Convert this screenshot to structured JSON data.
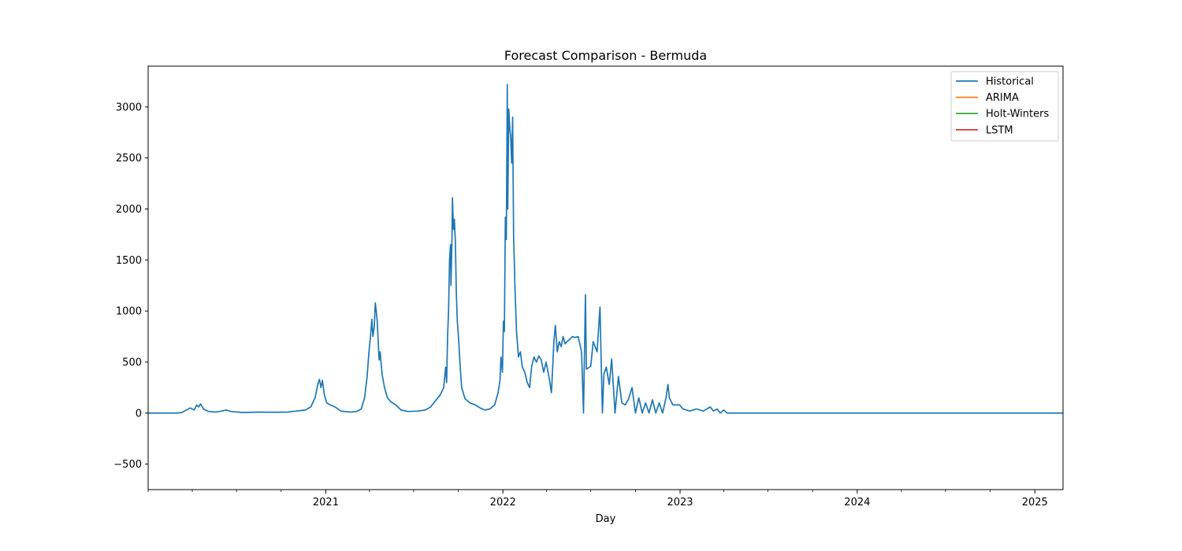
{
  "chart_data": {
    "type": "line",
    "title": "Forecast Comparison - Bermuda",
    "xlabel": "Day",
    "ylabel": "",
    "x_range": [
      "2020-01-01",
      "2025-02-28"
    ],
    "ylim": [
      -750,
      3400
    ],
    "y_ticks": [
      -500,
      0,
      500,
      1000,
      1500,
      2000,
      2500,
      3000
    ],
    "y_tick_labels": [
      "−500",
      "0",
      "500",
      "1000",
      "1500",
      "2000",
      "2500",
      "3000"
    ],
    "x_major_ticks": [
      {
        "date": "2021-01-01",
        "label": "2021"
      },
      {
        "date": "2022-01-01",
        "label": "2022"
      },
      {
        "date": "2023-01-01",
        "label": "2023"
      },
      {
        "date": "2024-01-01",
        "label": "2024"
      },
      {
        "date": "2025-01-01",
        "label": "2025"
      }
    ],
    "grid": false,
    "legend_position": "top-right",
    "series": [
      {
        "name": "Historical",
        "color": "#1f77b4",
        "points": [
          [
            "2020-01-01",
            0
          ],
          [
            "2020-03-01",
            0
          ],
          [
            "2020-03-10",
            5
          ],
          [
            "2020-03-20",
            30
          ],
          [
            "2020-03-28",
            50
          ],
          [
            "2020-04-05",
            30
          ],
          [
            "2020-04-10",
            80
          ],
          [
            "2020-04-14",
            60
          ],
          [
            "2020-04-18",
            90
          ],
          [
            "2020-04-24",
            40
          ],
          [
            "2020-05-05",
            15
          ],
          [
            "2020-05-20",
            10
          ],
          [
            "2020-06-01",
            20
          ],
          [
            "2020-06-10",
            30
          ],
          [
            "2020-06-20",
            15
          ],
          [
            "2020-07-15",
            5
          ],
          [
            "2020-08-15",
            10
          ],
          [
            "2020-09-15",
            8
          ],
          [
            "2020-10-15",
            10
          ],
          [
            "2020-11-01",
            20
          ],
          [
            "2020-11-20",
            30
          ],
          [
            "2020-12-01",
            60
          ],
          [
            "2020-12-10",
            150
          ],
          [
            "2020-12-16",
            290
          ],
          [
            "2020-12-19",
            330
          ],
          [
            "2020-12-22",
            250
          ],
          [
            "2020-12-25",
            320
          ],
          [
            "2020-12-29",
            180
          ],
          [
            "2021-01-03",
            100
          ],
          [
            "2021-01-10",
            80
          ],
          [
            "2021-01-20",
            60
          ],
          [
            "2021-02-01",
            20
          ],
          [
            "2021-02-20",
            10
          ],
          [
            "2021-03-05",
            15
          ],
          [
            "2021-03-15",
            40
          ],
          [
            "2021-03-22",
            150
          ],
          [
            "2021-03-27",
            350
          ],
          [
            "2021-03-31",
            600
          ],
          [
            "2021-04-04",
            800
          ],
          [
            "2021-04-06",
            920
          ],
          [
            "2021-04-08",
            750
          ],
          [
            "2021-04-11",
            850
          ],
          [
            "2021-04-13",
            1080
          ],
          [
            "2021-04-15",
            1000
          ],
          [
            "2021-04-17",
            900
          ],
          [
            "2021-04-19",
            700
          ],
          [
            "2021-04-21",
            520
          ],
          [
            "2021-04-23",
            600
          ],
          [
            "2021-04-27",
            380
          ],
          [
            "2021-05-02",
            250
          ],
          [
            "2021-05-08",
            150
          ],
          [
            "2021-05-15",
            110
          ],
          [
            "2021-05-25",
            80
          ],
          [
            "2021-06-05",
            30
          ],
          [
            "2021-06-20",
            15
          ],
          [
            "2021-07-10",
            20
          ],
          [
            "2021-07-25",
            30
          ],
          [
            "2021-08-05",
            60
          ],
          [
            "2021-08-15",
            120
          ],
          [
            "2021-08-25",
            180
          ],
          [
            "2021-09-01",
            250
          ],
          [
            "2021-09-05",
            450
          ],
          [
            "2021-09-07",
            300
          ],
          [
            "2021-09-09",
            760
          ],
          [
            "2021-09-11",
            1000
          ],
          [
            "2021-09-13",
            1500
          ],
          [
            "2021-09-15",
            1650
          ],
          [
            "2021-09-16",
            1250
          ],
          [
            "2021-09-18",
            1700
          ],
          [
            "2021-09-19",
            2110
          ],
          [
            "2021-09-21",
            1800
          ],
          [
            "2021-09-23",
            1900
          ],
          [
            "2021-09-25",
            1680
          ],
          [
            "2021-09-27",
            1170
          ],
          [
            "2021-09-29",
            900
          ],
          [
            "2021-10-02",
            700
          ],
          [
            "2021-10-05",
            450
          ],
          [
            "2021-10-08",
            250
          ],
          [
            "2021-10-15",
            140
          ],
          [
            "2021-10-25",
            100
          ],
          [
            "2021-11-05",
            80
          ],
          [
            "2021-11-15",
            50
          ],
          [
            "2021-11-25",
            30
          ],
          [
            "2021-12-05",
            40
          ],
          [
            "2021-12-15",
            80
          ],
          [
            "2021-12-22",
            200
          ],
          [
            "2021-12-26",
            320
          ],
          [
            "2021-12-28",
            550
          ],
          [
            "2021-12-31",
            400
          ],
          [
            "2022-01-02",
            900
          ],
          [
            "2022-01-04",
            800
          ],
          [
            "2022-01-06",
            1920
          ],
          [
            "2022-01-08",
            1700
          ],
          [
            "2022-01-10",
            3220
          ],
          [
            "2022-01-11",
            2000
          ],
          [
            "2022-01-13",
            2980
          ],
          [
            "2022-01-15",
            2800
          ],
          [
            "2022-01-17",
            2700
          ],
          [
            "2022-01-19",
            2450
          ],
          [
            "2022-01-21",
            2900
          ],
          [
            "2022-01-23",
            1730
          ],
          [
            "2022-01-26",
            1200
          ],
          [
            "2022-01-29",
            800
          ],
          [
            "2022-02-02",
            550
          ],
          [
            "2022-02-06",
            600
          ],
          [
            "2022-02-10",
            450
          ],
          [
            "2022-02-15",
            400
          ],
          [
            "2022-02-20",
            300
          ],
          [
            "2022-02-25",
            250
          ],
          [
            "2022-03-01",
            450
          ],
          [
            "2022-03-06",
            550
          ],
          [
            "2022-03-11",
            500
          ],
          [
            "2022-03-16",
            560
          ],
          [
            "2022-03-21",
            520
          ],
          [
            "2022-03-26",
            400
          ],
          [
            "2022-03-31",
            500
          ],
          [
            "2022-04-06",
            350
          ],
          [
            "2022-04-11",
            200
          ],
          [
            "2022-04-16",
            700
          ],
          [
            "2022-04-19",
            860
          ],
          [
            "2022-04-23",
            600
          ],
          [
            "2022-04-27",
            700
          ],
          [
            "2022-05-01",
            650
          ],
          [
            "2022-05-05",
            750
          ],
          [
            "2022-05-09",
            680
          ],
          [
            "2022-05-13",
            700
          ],
          [
            "2022-05-18",
            720
          ],
          [
            "2022-05-24",
            750
          ],
          [
            "2022-05-30",
            740
          ],
          [
            "2022-06-05",
            750
          ],
          [
            "2022-06-12",
            600
          ],
          [
            "2022-06-16",
            0
          ],
          [
            "2022-06-20",
            1160
          ],
          [
            "2022-06-22",
            430
          ],
          [
            "2022-07-01",
            460
          ],
          [
            "2022-07-06",
            700
          ],
          [
            "2022-07-14",
            600
          ],
          [
            "2022-07-20",
            1040
          ],
          [
            "2022-07-22",
            600
          ],
          [
            "2022-07-25",
            0
          ],
          [
            "2022-07-28",
            380
          ],
          [
            "2022-08-02",
            450
          ],
          [
            "2022-08-08",
            280
          ],
          [
            "2022-08-13",
            530
          ],
          [
            "2022-08-20",
            0
          ],
          [
            "2022-08-27",
            360
          ],
          [
            "2022-09-03",
            100
          ],
          [
            "2022-09-10",
            80
          ],
          [
            "2022-09-17",
            140
          ],
          [
            "2022-09-24",
            250
          ],
          [
            "2022-10-01",
            0
          ],
          [
            "2022-10-08",
            150
          ],
          [
            "2022-10-15",
            0
          ],
          [
            "2022-10-22",
            100
          ],
          [
            "2022-10-29",
            0
          ],
          [
            "2022-11-05",
            130
          ],
          [
            "2022-11-12",
            0
          ],
          [
            "2022-11-19",
            100
          ],
          [
            "2022-11-26",
            0
          ],
          [
            "2022-12-03",
            150
          ],
          [
            "2022-12-07",
            280
          ],
          [
            "2022-12-10",
            150
          ],
          [
            "2022-12-17",
            80
          ],
          [
            "2022-12-31",
            80
          ],
          [
            "2023-01-07",
            40
          ],
          [
            "2023-01-21",
            20
          ],
          [
            "2023-02-04",
            40
          ],
          [
            "2023-02-18",
            20
          ],
          [
            "2023-03-04",
            60
          ],
          [
            "2023-03-11",
            20
          ],
          [
            "2023-03-18",
            40
          ],
          [
            "2023-03-25",
            0
          ],
          [
            "2023-04-01",
            30
          ],
          [
            "2023-04-08",
            0
          ],
          [
            "2025-02-28",
            0
          ]
        ]
      },
      {
        "name": "ARIMA",
        "color": "#ff7f0e",
        "points": []
      },
      {
        "name": "Holt-Winters",
        "color": "#2ca02c",
        "points": []
      },
      {
        "name": "LSTM",
        "color": "#d62728",
        "points": []
      }
    ]
  }
}
